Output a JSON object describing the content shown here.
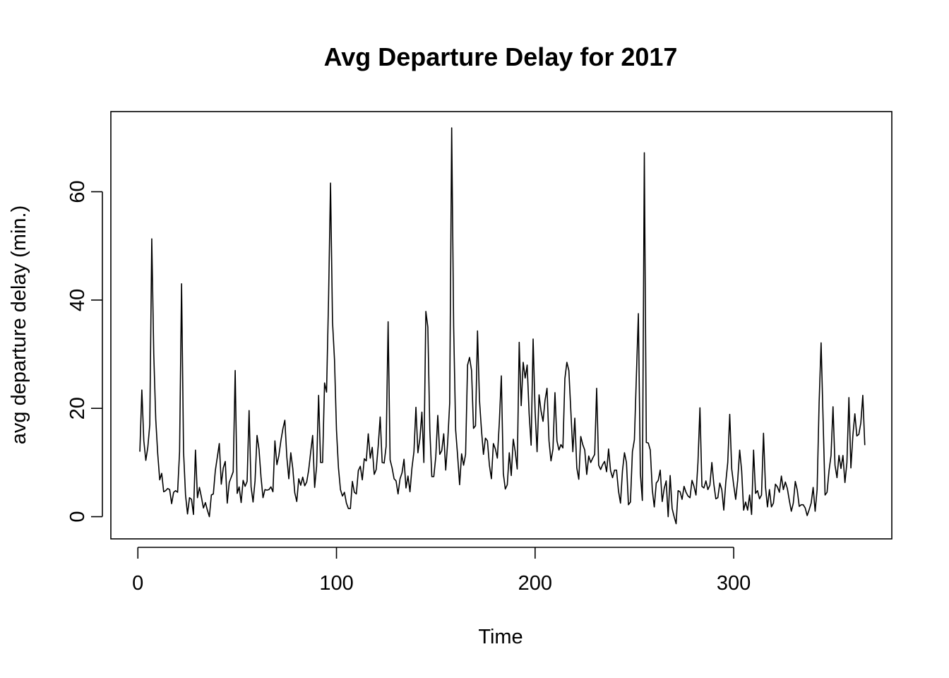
{
  "chart_data": {
    "type": "line",
    "title": "Avg Departure Delay for 2017",
    "xlabel": "Time",
    "ylabel": "avg departure delay (min.)",
    "xlim": [
      -13.6,
      379.6
    ],
    "ylim": [
      -4.1,
      74.8
    ],
    "x_ticks": [
      0,
      100,
      200,
      300
    ],
    "x_tick_labels": [
      "0",
      "100",
      "200",
      "300"
    ],
    "y_ticks": [
      0,
      20,
      40,
      60
    ],
    "y_tick_labels": [
      "0",
      "20",
      "40",
      "60"
    ],
    "grid": false,
    "legend": "none",
    "line_color": "#000000",
    "series": [
      {
        "x_start": 1,
        "x_step": 1,
        "values": [
          12.0,
          23.4,
          14.0,
          10.4,
          12.8,
          17.0,
          51.3,
          30.0,
          18.0,
          11.6,
          6.8,
          8.0,
          4.6,
          4.8,
          5.2,
          5.0,
          2.4,
          4.5,
          4.8,
          4.5,
          12.0,
          43.0,
          12.0,
          4.0,
          0.5,
          3.5,
          3.2,
          0.4,
          12.3,
          3.5,
          5.4,
          3.6,
          1.6,
          2.6,
          1.2,
          0.0,
          4.0,
          4.2,
          8.5,
          11.0,
          13.5,
          6.0,
          9.0,
          10.2,
          2.5,
          6.3,
          7.3,
          8.3,
          27.0,
          4.3,
          5.5,
          2.6,
          6.7,
          5.6,
          6.5,
          19.6,
          5.5,
          2.7,
          6.6,
          15.0,
          12.4,
          7.3,
          3.5,
          5.0,
          4.9,
          5.0,
          5.5,
          4.6,
          14.0,
          9.6,
          11.3,
          14.0,
          16.2,
          17.8,
          11.0,
          7.0,
          11.8,
          8.9,
          4.4,
          2.8,
          7.0,
          5.8,
          7.3,
          5.7,
          6.4,
          8.6,
          11.9,
          15.0,
          5.4,
          9.3,
          22.4,
          10.0,
          10.0,
          24.7,
          23.0,
          40.0,
          61.6,
          36.0,
          29.0,
          16.0,
          9.0,
          5.0,
          3.8,
          4.5,
          2.5,
          1.5,
          1.5,
          6.5,
          4.5,
          4.2,
          8.5,
          9.3,
          6.8,
          10.7,
          10.3,
          15.3,
          10.8,
          12.8,
          7.8,
          8.7,
          13.0,
          18.4,
          10.0,
          9.9,
          13.0,
          36.0,
          10.5,
          9.0,
          7.0,
          6.6,
          4.2,
          7.0,
          8.1,
          10.6,
          5.3,
          7.5,
          4.6,
          9.0,
          12.0,
          20.2,
          11.8,
          14.4,
          19.3,
          10.0,
          37.9,
          35.0,
          16.0,
          7.4,
          7.4,
          11.1,
          18.7,
          11.5,
          12.2,
          15.3,
          8.6,
          13.8,
          21.0,
          71.8,
          35.0,
          16.0,
          11.2,
          5.9,
          11.6,
          9.5,
          11.5,
          28.0,
          29.4,
          27.0,
          16.3,
          16.8,
          34.3,
          21.5,
          16.0,
          11.5,
          14.5,
          14.0,
          9.5,
          7.0,
          13.5,
          12.5,
          10.8,
          17.5,
          26.0,
          8.0,
          5.1,
          5.9,
          11.8,
          7.6,
          14.3,
          12.0,
          8.8,
          32.2,
          20.5,
          28.5,
          25.6,
          28.0,
          19.0,
          13.2,
          32.8,
          19.5,
          12.0,
          22.5,
          19.5,
          17.6,
          21.5,
          23.7,
          14.0,
          10.3,
          12.5,
          22.9,
          14.0,
          12.3,
          13.3,
          12.7,
          25.5,
          28.5,
          27.0,
          19.5,
          12.0,
          18.2,
          9.0,
          6.9,
          14.8,
          13.3,
          12.3,
          7.8,
          11.2,
          10.0,
          10.8,
          11.5,
          23.7,
          9.5,
          8.7,
          9.6,
          10.2,
          8.3,
          12.5,
          8.5,
          7.2,
          8.6,
          8.6,
          4.7,
          2.5,
          8.5,
          11.8,
          10.0,
          2.2,
          2.7,
          12.0,
          14.2,
          26.0,
          37.5,
          8.0,
          3.0,
          67.2,
          13.7,
          13.6,
          12.3,
          5.0,
          1.8,
          6.2,
          6.7,
          8.6,
          2.8,
          5.2,
          6.6,
          0.0,
          7.6,
          1.5,
          0.0,
          -1.3,
          4.8,
          4.6,
          3.2,
          5.6,
          4.5,
          3.8,
          3.5,
          6.7,
          5.6,
          4.0,
          10.0,
          20.1,
          5.6,
          5.3,
          6.6,
          5.0,
          5.8,
          10.0,
          6.0,
          3.3,
          3.5,
          6.2,
          5.0,
          1.2,
          6.3,
          10.0,
          18.9,
          8.8,
          5.8,
          3.2,
          6.7,
          12.3,
          8.5,
          1.2,
          2.7,
          1.2,
          4.0,
          0.4,
          12.3,
          4.3,
          4.8,
          3.3,
          4.0,
          15.4,
          5.5,
          1.8,
          5.0,
          1.8,
          2.5,
          6.0,
          5.5,
          4.5,
          7.5,
          5.0,
          6.4,
          5.2,
          3.0,
          1.0,
          2.5,
          6.5,
          4.9,
          1.9,
          2.2,
          2.2,
          1.6,
          0.2,
          1.3,
          2.5,
          5.4,
          1.0,
          5.0,
          21.0,
          32.1,
          18.0,
          4.0,
          4.5,
          8.5,
          11.3,
          20.3,
          9.5,
          7.2,
          11.3,
          8.9,
          11.3,
          6.3,
          10.0,
          22.0,
          9.0,
          15.0,
          19.0,
          14.9,
          15.2,
          17.3,
          22.4,
          13.2
        ]
      }
    ]
  }
}
